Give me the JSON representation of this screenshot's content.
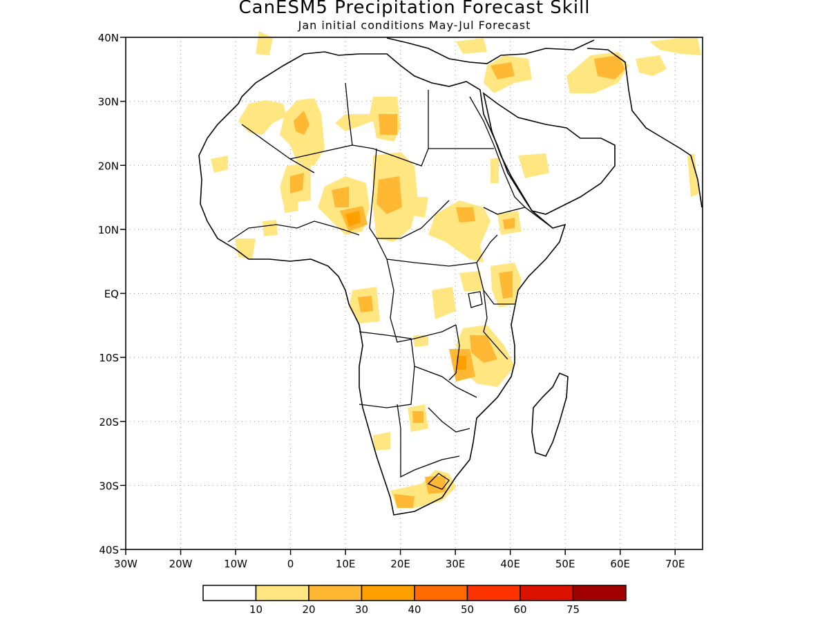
{
  "title": "CanESM5 Precipitation Forecast Skill",
  "subtitle": "Jan initial conditions  May-Jul Forecast",
  "map": {
    "lon_range": [
      -30,
      75
    ],
    "lat_range": [
      -40,
      40
    ],
    "lat_ticks": [
      {
        "value": 40,
        "label": "40N"
      },
      {
        "value": 30,
        "label": "30N"
      },
      {
        "value": 20,
        "label": "20N"
      },
      {
        "value": 10,
        "label": "10N"
      },
      {
        "value": 0,
        "label": "EQ"
      },
      {
        "value": -10,
        "label": "10S"
      },
      {
        "value": -20,
        "label": "20S"
      },
      {
        "value": -30,
        "label": "30S"
      },
      {
        "value": -40,
        "label": "40S"
      }
    ],
    "lon_ticks": [
      {
        "value": -30,
        "label": "30W"
      },
      {
        "value": -20,
        "label": "20W"
      },
      {
        "value": -10,
        "label": "10W"
      },
      {
        "value": 0,
        "label": "0"
      },
      {
        "value": 10,
        "label": "10E"
      },
      {
        "value": 20,
        "label": "20E"
      },
      {
        "value": 30,
        "label": "30E"
      },
      {
        "value": 40,
        "label": "40E"
      },
      {
        "value": 50,
        "label": "50E"
      },
      {
        "value": 60,
        "label": "60E"
      },
      {
        "value": 70,
        "label": "70E"
      }
    ],
    "gridlines": "dotted",
    "colors": {
      "land_outline": "#000000",
      "skill_low": "#ffe680",
      "skill_mid": "#ffb833",
      "skill_high": "#ffa000",
      "skill_top": "#ff6a00"
    }
  },
  "legend": {
    "labels": [
      "10",
      "20",
      "30",
      "40",
      "50",
      "60",
      "75"
    ],
    "colors": [
      "#ffffff",
      "#ffe680",
      "#ffb833",
      "#ffa000",
      "#ff6a00",
      "#ff3300",
      "#dd1100",
      "#a00000"
    ]
  }
}
